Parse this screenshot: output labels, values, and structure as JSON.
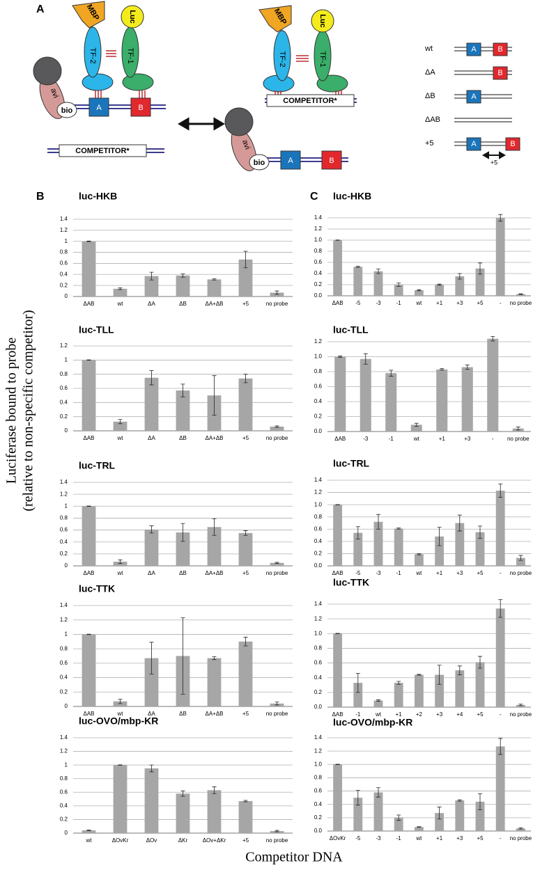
{
  "panel_a": {
    "label": "A",
    "left": {
      "mbp": "MBP",
      "luc": "Luc",
      "tf2": "TF-2",
      "tf1": "TF-1",
      "avi": "avi",
      "bio": "bio",
      "site_a": "A",
      "site_b": "B",
      "competitor": "COMPETITOR*"
    },
    "right": {
      "mbp": "MBP",
      "luc": "Luc",
      "tf2": "TF-2",
      "tf1": "TF-1",
      "avi": "avi",
      "bio": "bio",
      "site_a": "A",
      "site_b": "B",
      "competitor": "COMPETITOR*"
    },
    "legend": {
      "rows": [
        "wt",
        "ΔA",
        "ΔB",
        "ΔAB",
        "+5"
      ],
      "site_a": "A",
      "site_b": "B",
      "offset": "+5"
    }
  },
  "panel_labels": {
    "b": "B",
    "c": "C"
  },
  "y_label": [
    "Luciferase bound to probe",
    "(relative to non-specific competitor)"
  ],
  "x_label": "Competitor DNA",
  "chart_data": [
    {
      "type": "bar",
      "title": "luc-HKB",
      "color": "#a6a6a6",
      "grid": true,
      "ylim": [
        0,
        1.4
      ],
      "yticks": [
        0,
        0.2,
        0.4,
        0.6,
        0.8,
        1,
        1.2,
        1.4
      ],
      "categories": [
        "ΔAB",
        "wt",
        "ΔA",
        "ΔB",
        "ΔA+ΔB",
        "+5",
        "no probe"
      ],
      "values": [
        1.0,
        0.14,
        0.37,
        0.38,
        0.31,
        0.67,
        0.07
      ],
      "errors": [
        0.005,
        0.015,
        0.07,
        0.03,
        0.01,
        0.15,
        0.03
      ]
    },
    {
      "type": "bar",
      "title": "luc-TLL",
      "color": "#a6a6a6",
      "grid": true,
      "ylim": [
        0,
        1.2
      ],
      "yticks": [
        0,
        0.2,
        0.4,
        0.6,
        0.8,
        1,
        1.2
      ],
      "categories": [
        "ΔAB",
        "wt",
        "ΔA",
        "ΔB",
        "ΔA+ΔB",
        "+5",
        "no probe"
      ],
      "values": [
        1.0,
        0.13,
        0.75,
        0.57,
        0.5,
        0.74,
        0.06
      ],
      "errors": [
        0.003,
        0.03,
        0.1,
        0.09,
        0.28,
        0.06,
        0.01
      ]
    },
    {
      "type": "bar",
      "title": "luc-TRL",
      "color": "#a6a6a6",
      "grid": true,
      "ylim": [
        0,
        1.4
      ],
      "yticks": [
        0,
        0.2,
        0.4,
        0.6,
        0.8,
        1,
        1.2,
        1.4
      ],
      "categories": [
        "ΔAB",
        "wt",
        "ΔA",
        "ΔB",
        "ΔA+ΔB",
        "+5",
        "no probe"
      ],
      "values": [
        1.0,
        0.07,
        0.61,
        0.56,
        0.65,
        0.55,
        0.05
      ],
      "errors": [
        0.003,
        0.03,
        0.06,
        0.15,
        0.14,
        0.04,
        0.01
      ]
    },
    {
      "type": "bar",
      "title": "luc-TTK",
      "color": "#a6a6a6",
      "grid": true,
      "ylim": [
        0,
        1.4
      ],
      "yticks": [
        0,
        0.2,
        0.4,
        0.6,
        0.8,
        1,
        1.2,
        1.4
      ],
      "categories": [
        "ΔAB",
        "wt",
        "ΔA",
        "ΔB",
        "ΔA+ΔB",
        "+5",
        "no probe"
      ],
      "values": [
        1.0,
        0.07,
        0.67,
        0.7,
        0.67,
        0.9,
        0.04
      ],
      "errors": [
        0.003,
        0.03,
        0.22,
        0.53,
        0.02,
        0.06,
        0.02
      ]
    },
    {
      "type": "bar",
      "title": "luc-OVO/mbp-KR",
      "color": "#a6a6a6",
      "grid": true,
      "ylim": [
        0,
        1.4
      ],
      "yticks": [
        0,
        0.2,
        0.4,
        0.6,
        0.8,
        1,
        1.2,
        1.4
      ],
      "categories": [
        "wt",
        "ΔOvKr",
        "ΔOv",
        "ΔKr",
        "ΔOv+ΔKr",
        "+5",
        "no probe"
      ],
      "values": [
        0.04,
        1.0,
        0.95,
        0.58,
        0.63,
        0.47,
        0.03
      ],
      "errors": [
        0.005,
        0.003,
        0.05,
        0.04,
        0.05,
        0.01,
        0.01
      ]
    },
    {
      "type": "bar",
      "title": "luc-HKB",
      "color": "#a6a6a6",
      "grid": true,
      "ylim": [
        0,
        1.4
      ],
      "yticks": [
        {
          "value": 0,
          "label": "0.0"
        },
        0.2,
        0.4,
        0.6,
        0.8,
        {
          "value": 1,
          "label": "1.0"
        },
        1.2,
        1.4
      ],
      "categories": [
        "ΔAB",
        "-5",
        "-3",
        "-1",
        "wt",
        "+1",
        "+3",
        "+5",
        "-",
        "no probe"
      ],
      "values": [
        1.0,
        0.52,
        0.44,
        0.2,
        0.1,
        0.2,
        0.35,
        0.49,
        1.4,
        0.03
      ],
      "errors": [
        0.003,
        0.01,
        0.04,
        0.03,
        0.01,
        0.01,
        0.05,
        0.1,
        0.06,
        0.005
      ]
    },
    {
      "type": "bar",
      "title": "luc-TLL",
      "color": "#a6a6a6",
      "grid": true,
      "ylim": [
        0,
        1.2
      ],
      "yticks": [
        {
          "value": 0,
          "label": "0.0"
        },
        0.2,
        0.4,
        0.6,
        0.8,
        {
          "value": 1,
          "label": "1.0"
        },
        1.2
      ],
      "categories": [
        "ΔAB",
        "-3",
        "-1",
        "wt",
        "+1",
        "+3",
        "-",
        "no probe"
      ],
      "values": [
        1.0,
        0.97,
        0.78,
        0.09,
        0.83,
        0.86,
        1.24,
        0.04
      ],
      "errors": [
        0.01,
        0.07,
        0.04,
        0.02,
        0.01,
        0.03,
        0.03,
        0.02
      ]
    },
    {
      "type": "bar",
      "title": "luc-TRL",
      "color": "#a6a6a6",
      "grid": true,
      "ylim": [
        0,
        1.4
      ],
      "yticks": [
        {
          "value": 0,
          "label": "0.0"
        },
        0.2,
        0.4,
        0.6,
        0.8,
        {
          "value": 1,
          "label": "1.0"
        },
        1.2,
        1.4
      ],
      "categories": [
        "ΔAB",
        "-5",
        "-3",
        "-1",
        "wt",
        "+1",
        "+3",
        "+5",
        "-",
        "no probe"
      ],
      "values": [
        1.0,
        0.54,
        0.72,
        0.61,
        0.19,
        0.48,
        0.7,
        0.55,
        1.23,
        0.13
      ],
      "errors": [
        0.003,
        0.1,
        0.12,
        0.01,
        0.01,
        0.15,
        0.13,
        0.1,
        0.11,
        0.04
      ]
    },
    {
      "type": "bar",
      "title": "luc-TTK",
      "color": "#a6a6a6",
      "grid": true,
      "ylim": [
        0,
        1.4
      ],
      "yticks": [
        {
          "value": 0,
          "label": "0.0"
        },
        0.2,
        0.4,
        0.6,
        0.8,
        {
          "value": 1,
          "label": "1.0"
        },
        1.2,
        1.4
      ],
      "categories": [
        "ΔAB",
        "-1",
        "wt",
        "+1",
        "+2",
        "+3",
        "+4",
        "+5",
        "-",
        "no probe"
      ],
      "values": [
        1.0,
        0.33,
        0.09,
        0.33,
        0.44,
        0.44,
        0.5,
        0.61,
        1.34,
        0.03
      ],
      "errors": [
        0.003,
        0.13,
        0.01,
        0.02,
        0.005,
        0.13,
        0.06,
        0.08,
        0.12,
        0.01
      ]
    },
    {
      "type": "bar",
      "title": "luc-OVO/mbp-KR",
      "color": "#a6a6a6",
      "grid": true,
      "ylim": [
        0,
        1.4
      ],
      "yticks": [
        {
          "value": 0,
          "label": "0.0"
        },
        0.2,
        0.4,
        0.6,
        0.8,
        {
          "value": 1,
          "label": "1.0"
        },
        1.2,
        1.4
      ],
      "categories": [
        "ΔOvKr",
        "-5",
        "-3",
        "-1",
        "wt",
        "+1",
        "+3",
        "+5",
        "-",
        "no probe"
      ],
      "values": [
        1.0,
        0.5,
        0.58,
        0.2,
        0.06,
        0.27,
        0.46,
        0.44,
        1.27,
        0.04
      ],
      "errors": [
        0.003,
        0.11,
        0.07,
        0.04,
        0.005,
        0.09,
        0.01,
        0.12,
        0.12,
        0.01
      ]
    }
  ]
}
